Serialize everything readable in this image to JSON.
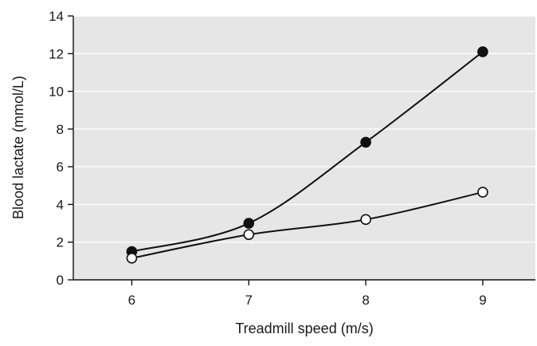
{
  "chart_data": {
    "type": "line",
    "title": "",
    "xlabel": "Treadmill speed (m/s)",
    "ylabel": "Blood lactate (mmol/L)",
    "x": [
      6,
      7,
      8,
      9
    ],
    "xlim": [
      5.5,
      9.45
    ],
    "ylim": [
      0,
      14
    ],
    "xticks": [
      6,
      7,
      8,
      9
    ],
    "yticks": [
      0,
      2,
      4,
      6,
      8,
      10,
      12,
      14
    ],
    "grid": "horizontal",
    "plot_background": "#e6e6e6",
    "grid_color": "#ffffff",
    "series": [
      {
        "values": [
          1.5,
          3.0,
          7.3,
          12.1
        ],
        "marker": "filled-circle",
        "color": "#111111"
      },
      {
        "values": [
          1.15,
          2.4,
          3.2,
          4.65
        ],
        "marker": "open-circle",
        "color": "#111111"
      }
    ]
  }
}
